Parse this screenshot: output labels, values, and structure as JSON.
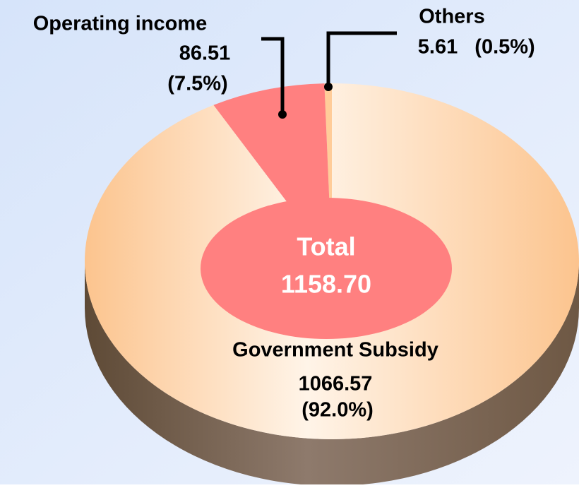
{
  "chart_data": {
    "type": "pie",
    "categories": [
      "Government Subsidy",
      "Operating income",
      "Others"
    ],
    "values": [
      1066.57,
      86.51,
      5.61
    ],
    "percentages": [
      92.0,
      7.5,
      0.5
    ],
    "percentage_labels": [
      "(92.0%)",
      "(7.5%)",
      "(0.5%)"
    ],
    "colors": [
      "#fcc48e",
      "#ff8080",
      "#ffcc99"
    ],
    "total_title": "Total",
    "total": {
      "value": 1158.7,
      "label": "1158.70"
    }
  }
}
